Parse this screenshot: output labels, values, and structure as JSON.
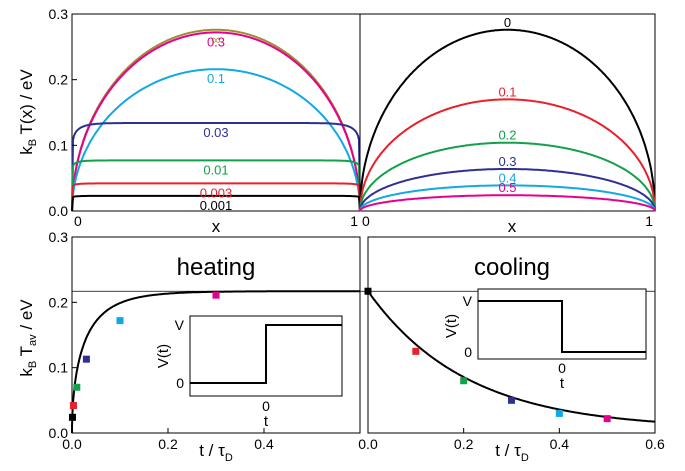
{
  "colors": {
    "black": "#000000",
    "red": "#e8202a",
    "green": "#13a04a",
    "navy": "#2e3192",
    "cyan": "#12a8e0",
    "magenta": "#e7008a",
    "olive": "#9a8f35"
  },
  "chart_data": [
    {
      "type": "line",
      "panel": "top-left",
      "xlabel": "x",
      "ylabel": "k_B T(x) / eV",
      "ylabel_parts": {
        "k": "k",
        "sub": "B",
        "rest": " T(x) / eV"
      },
      "xlim": [
        0,
        1
      ],
      "ylim": [
        0,
        0.3
      ],
      "x_ticks": [
        "0",
        "1"
      ],
      "y_ticks": [
        "0.0",
        "0.1",
        "0.2",
        "0.3"
      ],
      "y_tick_values": [
        0,
        0.1,
        0.2,
        0.3
      ],
      "series": [
        {
          "name": "∞",
          "color": "#9a8f35",
          "peak": 0.276,
          "flat": 0.0
        },
        {
          "name": "0.3",
          "color": "#e7008a",
          "peak": 0.272,
          "flat": 0.0
        },
        {
          "name": "0.1",
          "color": "#12a8e0",
          "peak": 0.216,
          "flat": 0.0
        },
        {
          "name": "0.03",
          "color": "#2e3192",
          "peak": 0.134,
          "flat": 0.45
        },
        {
          "name": "0.01",
          "color": "#13a04a",
          "peak": 0.077,
          "flat": 0.75
        },
        {
          "name": "0.003",
          "color": "#e8202a",
          "peak": 0.042,
          "flat": 0.9
        },
        {
          "name": "0.001",
          "color": "#000000",
          "peak": 0.023,
          "flat": 0.96
        }
      ]
    },
    {
      "type": "line",
      "panel": "top-right",
      "xlabel": "x",
      "xlim": [
        0,
        1
      ],
      "ylim": [
        0,
        0.3
      ],
      "x_ticks": [
        "0",
        "1"
      ],
      "series": [
        {
          "name": "0",
          "color": "#000000",
          "peak": 0.276
        },
        {
          "name": "0.1",
          "color": "#e8202a",
          "peak": 0.17
        },
        {
          "name": "0.2",
          "color": "#13a04a",
          "peak": 0.104
        },
        {
          "name": "0.3",
          "color": "#2e3192",
          "peak": 0.064
        },
        {
          "name": "0.4",
          "color": "#12a8e0",
          "peak": 0.039
        },
        {
          "name": "0.5",
          "color": "#e7008a",
          "peak": 0.024
        }
      ]
    },
    {
      "type": "line",
      "panel": "bottom-left",
      "title": "heating",
      "xlabel": "t / τ_D",
      "xlabel_parts": {
        "main": "t / τ",
        "sub": "D"
      },
      "ylabel": "k_B T_av / eV",
      "ylabel_parts": {
        "k": "k",
        "sub": "B",
        "T": " T",
        "sub2": "av",
        "rest": " / eV"
      },
      "xlim": [
        0,
        0.6
      ],
      "ylim": [
        0,
        0.3
      ],
      "x_ticks": [
        "0.0",
        "0.2",
        "0.4"
      ],
      "x_tick_values": [
        0,
        0.2,
        0.4
      ],
      "y_ticks": [
        "0.0",
        "0.1",
        "0.2",
        "0.3"
      ],
      "y_tick_values": [
        0,
        0.1,
        0.2,
        0.3
      ],
      "asymptote": 0.217,
      "curve": {
        "saturation": 0.217,
        "tau": 0.05
      },
      "points": [
        {
          "x": 0.001,
          "y": 0.024,
          "color": "#000000"
        },
        {
          "x": 0.003,
          "y": 0.042,
          "color": "#e8202a"
        },
        {
          "x": 0.01,
          "y": 0.07,
          "color": "#13a04a"
        },
        {
          "x": 0.03,
          "y": 0.113,
          "color": "#2e3192"
        },
        {
          "x": 0.1,
          "y": 0.172,
          "color": "#12a8e0"
        },
        {
          "x": 0.3,
          "y": 0.211,
          "color": "#e7008a"
        }
      ],
      "inset": {
        "ylabel": "V(t)",
        "xlabel": "t",
        "y_ticks": [
          "V",
          "0"
        ],
        "x_ticks": [
          "0"
        ]
      }
    },
    {
      "type": "line",
      "panel": "bottom-right",
      "title": "cooling",
      "xlabel": "t / τ_D",
      "xlabel_parts": {
        "main": "t / τ",
        "sub": "D"
      },
      "xlim": [
        0,
        0.6
      ],
      "ylim": [
        0,
        0.3
      ],
      "x_ticks": [
        "0.0",
        "0.2",
        "0.4",
        "0.6"
      ],
      "x_tick_values": [
        0,
        0.2,
        0.4,
        0.6
      ],
      "curve": {
        "start": 0.217,
        "rate": 4.9
      },
      "points": [
        {
          "x": 0.0,
          "y": 0.217,
          "color": "#000000"
        },
        {
          "x": 0.1,
          "y": 0.125,
          "color": "#e8202a"
        },
        {
          "x": 0.2,
          "y": 0.08,
          "color": "#13a04a"
        },
        {
          "x": 0.3,
          "y": 0.05,
          "color": "#2e3192"
        },
        {
          "x": 0.4,
          "y": 0.03,
          "color": "#12a8e0"
        },
        {
          "x": 0.5,
          "y": 0.022,
          "color": "#e7008a"
        }
      ],
      "inset": {
        "ylabel": "V(t)",
        "xlabel": "t",
        "y_ticks": [
          "V",
          "0"
        ],
        "x_ticks": [
          "0"
        ]
      }
    }
  ]
}
